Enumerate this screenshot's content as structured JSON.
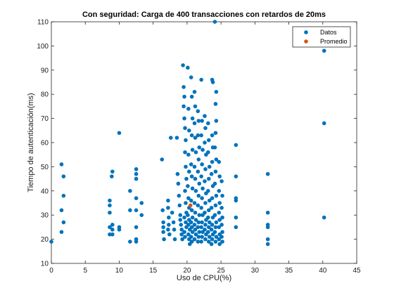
{
  "chart_data": {
    "type": "scatter",
    "title": "Con seguridad: Carga de 400 transacciones con retardos de 20ms",
    "xlabel": "Uso de CPU(%)",
    "ylabel": "Tiempo de autenticación(ms)",
    "xlim": [
      0,
      45
    ],
    "ylim": [
      10,
      110
    ],
    "xticks": [
      0,
      5,
      10,
      15,
      20,
      25,
      30,
      35,
      40,
      45
    ],
    "yticks": [
      10,
      20,
      30,
      40,
      50,
      60,
      70,
      80,
      90,
      100,
      110
    ],
    "grid": false,
    "legend_position": "top-right",
    "series": [
      {
        "name": "Datos",
        "color": "#0072BD",
        "points": [
          [
            0,
            19
          ],
          [
            1.5,
            51
          ],
          [
            1.5,
            32
          ],
          [
            1.5,
            23
          ],
          [
            1.8,
            46
          ],
          [
            1.8,
            38
          ],
          [
            1.8,
            27
          ],
          [
            8.6,
            36
          ],
          [
            8.6,
            34
          ],
          [
            8.6,
            31
          ],
          [
            8.6,
            25
          ],
          [
            8.6,
            22
          ],
          [
            8.9,
            46
          ],
          [
            9,
            48
          ],
          [
            9,
            26
          ],
          [
            9,
            24
          ],
          [
            9,
            22
          ],
          [
            10,
            64
          ],
          [
            10,
            25
          ],
          [
            10,
            24
          ],
          [
            11.6,
            40
          ],
          [
            11.6,
            32
          ],
          [
            11.6,
            19
          ],
          [
            12.5,
            49
          ],
          [
            12.5,
            47
          ],
          [
            12.5,
            45
          ],
          [
            12.5,
            37
          ],
          [
            12.5,
            32
          ],
          [
            12.5,
            25
          ],
          [
            12.5,
            20
          ],
          [
            12.5,
            19
          ],
          [
            13.3,
            35
          ],
          [
            13.3,
            30
          ],
          [
            16.3,
            53
          ],
          [
            16.4,
            32
          ],
          [
            16.5,
            27
          ],
          [
            16.5,
            25
          ],
          [
            16.5,
            23
          ],
          [
            16.6,
            20
          ],
          [
            17.2,
            36
          ],
          [
            17.2,
            33
          ],
          [
            17.3,
            29
          ],
          [
            17.3,
            26
          ],
          [
            17.2,
            24
          ],
          [
            17.4,
            22
          ],
          [
            17.6,
            62
          ],
          [
            17.8,
            31
          ],
          [
            18,
            27
          ],
          [
            18.1,
            24
          ],
          [
            18.2,
            20
          ],
          [
            18.5,
            62
          ],
          [
            18.6,
            47
          ],
          [
            18.7,
            43
          ],
          [
            18.8,
            38
          ],
          [
            18.9,
            34
          ],
          [
            19,
            30
          ],
          [
            19,
            28
          ],
          [
            19.1,
            26
          ],
          [
            19.2,
            24
          ],
          [
            19.2,
            22
          ],
          [
            19.3,
            20
          ],
          [
            19.4,
            92
          ],
          [
            19.5,
            83
          ],
          [
            19.6,
            79
          ],
          [
            19.5,
            75
          ],
          [
            19.6,
            70
          ],
          [
            19.7,
            66
          ],
          [
            19.8,
            61
          ],
          [
            19.7,
            56
          ],
          [
            19.8,
            50
          ],
          [
            19.9,
            45
          ],
          [
            19.7,
            40
          ],
          [
            19.8,
            35
          ],
          [
            19.9,
            31
          ],
          [
            19.6,
            29
          ],
          [
            19.8,
            27
          ],
          [
            19.9,
            25
          ],
          [
            19.6,
            23
          ],
          [
            19.7,
            21
          ],
          [
            20.1,
            91
          ],
          [
            20.2,
            74
          ],
          [
            20.3,
            65
          ],
          [
            20.2,
            55
          ],
          [
            20.3,
            48
          ],
          [
            20.1,
            42
          ],
          [
            20.2,
            37
          ],
          [
            20.3,
            33
          ],
          [
            20.1,
            30
          ],
          [
            20.3,
            28
          ],
          [
            20.2,
            26
          ],
          [
            20.4,
            24
          ],
          [
            20.2,
            22
          ],
          [
            20.3,
            20
          ],
          [
            20.4,
            18
          ],
          [
            20.6,
            87
          ],
          [
            20.7,
            79
          ],
          [
            20.8,
            70
          ],
          [
            20.7,
            63
          ],
          [
            20.8,
            57
          ],
          [
            20.6,
            51
          ],
          [
            20.7,
            46
          ],
          [
            20.8,
            41
          ],
          [
            20.6,
            36
          ],
          [
            20.7,
            32
          ],
          [
            20.8,
            29
          ],
          [
            20.6,
            27
          ],
          [
            20.7,
            25
          ],
          [
            20.8,
            23
          ],
          [
            20.6,
            21
          ],
          [
            20.7,
            19
          ],
          [
            21.1,
            81
          ],
          [
            21.2,
            75
          ],
          [
            21.1,
            68
          ],
          [
            21.2,
            62
          ],
          [
            21.3,
            56
          ],
          [
            21.1,
            50
          ],
          [
            21.2,
            45
          ],
          [
            21.3,
            40
          ],
          [
            21.1,
            35
          ],
          [
            21.2,
            31
          ],
          [
            21.3,
            28
          ],
          [
            21.1,
            26
          ],
          [
            21.2,
            24
          ],
          [
            21.3,
            22
          ],
          [
            21.1,
            20
          ],
          [
            21.6,
            73
          ],
          [
            21.7,
            69
          ],
          [
            21.6,
            63
          ],
          [
            21.8,
            58
          ],
          [
            21.7,
            53
          ],
          [
            21.6,
            48
          ],
          [
            21.8,
            43
          ],
          [
            21.7,
            38
          ],
          [
            21.6,
            34
          ],
          [
            21.8,
            30
          ],
          [
            21.7,
            27
          ],
          [
            21.6,
            25
          ],
          [
            21.8,
            23
          ],
          [
            21.7,
            21
          ],
          [
            21.6,
            19
          ],
          [
            22.1,
            86
          ],
          [
            22.2,
            69
          ],
          [
            22.1,
            63
          ],
          [
            22.3,
            57
          ],
          [
            22.2,
            51
          ],
          [
            22.1,
            46
          ],
          [
            22.3,
            41
          ],
          [
            22.2,
            37
          ],
          [
            22.1,
            33
          ],
          [
            22.3,
            30
          ],
          [
            22.2,
            27
          ],
          [
            22.1,
            25
          ],
          [
            22.3,
            23
          ],
          [
            22.2,
            21
          ],
          [
            22.1,
            19
          ],
          [
            22.6,
            71
          ],
          [
            22.7,
            66
          ],
          [
            22.6,
            60
          ],
          [
            22.8,
            55
          ],
          [
            22.7,
            49
          ],
          [
            22.6,
            44
          ],
          [
            22.8,
            39
          ],
          [
            22.7,
            35
          ],
          [
            22.6,
            31
          ],
          [
            22.8,
            28
          ],
          [
            22.7,
            26
          ],
          [
            22.6,
            24
          ],
          [
            22.8,
            22
          ],
          [
            22.7,
            20
          ],
          [
            23.1,
            68
          ],
          [
            23.2,
            61
          ],
          [
            23.1,
            56
          ],
          [
            23.3,
            50
          ],
          [
            23.2,
            45
          ],
          [
            23.1,
            40
          ],
          [
            23.3,
            36
          ],
          [
            23.2,
            32
          ],
          [
            23.1,
            29
          ],
          [
            23.3,
            27
          ],
          [
            23.2,
            25
          ],
          [
            23.1,
            23
          ],
          [
            23.3,
            21
          ],
          [
            23.2,
            19
          ],
          [
            23.7,
            86
          ],
          [
            23.8,
            85
          ],
          [
            23.7,
            63
          ],
          [
            23.8,
            58
          ],
          [
            23.7,
            52
          ],
          [
            23.6,
            47
          ],
          [
            23.8,
            42
          ],
          [
            23.7,
            37
          ],
          [
            23.6,
            33
          ],
          [
            23.8,
            29
          ],
          [
            23.7,
            26
          ],
          [
            23.6,
            24
          ],
          [
            23.8,
            22
          ],
          [
            23.7,
            20
          ],
          [
            23.6,
            18
          ],
          [
            24.1,
            110
          ],
          [
            24.3,
            81
          ],
          [
            24.2,
            76
          ],
          [
            24.3,
            69
          ],
          [
            24.2,
            64
          ],
          [
            24.1,
            58
          ],
          [
            24.3,
            53
          ],
          [
            24.2,
            48
          ],
          [
            24.1,
            43
          ],
          [
            24.3,
            38
          ],
          [
            24.2,
            34
          ],
          [
            24.1,
            30
          ],
          [
            24.3,
            27
          ],
          [
            24.2,
            25
          ],
          [
            24.1,
            23
          ],
          [
            24.3,
            21
          ],
          [
            24.2,
            19
          ],
          [
            24.7,
            52
          ],
          [
            24.8,
            46
          ],
          [
            24.7,
            40
          ],
          [
            24.8,
            35
          ],
          [
            24.7,
            31
          ],
          [
            24.8,
            28
          ],
          [
            24.7,
            25
          ],
          [
            24.8,
            22
          ],
          [
            24.7,
            20
          ],
          [
            24.8,
            18
          ],
          [
            25.1,
            44
          ],
          [
            25.2,
            38
          ],
          [
            25.1,
            33
          ],
          [
            25.2,
            29
          ],
          [
            25.1,
            26
          ],
          [
            25.2,
            23
          ],
          [
            25.1,
            21
          ],
          [
            25.2,
            19
          ],
          [
            27.2,
            59
          ],
          [
            27.2,
            46
          ],
          [
            27.2,
            37
          ],
          [
            27.2,
            36
          ],
          [
            27.2,
            29
          ],
          [
            27.2,
            25
          ],
          [
            31.9,
            47
          ],
          [
            31.9,
            31
          ],
          [
            31.9,
            26
          ],
          [
            31.9,
            25
          ],
          [
            31.9,
            20
          ],
          [
            31.9,
            18
          ],
          [
            40.2,
            98
          ],
          [
            40.2,
            68
          ],
          [
            40.2,
            29
          ]
        ]
      },
      {
        "name": "Promedio",
        "color": "#D95319",
        "points": [
          [
            20.5,
            34
          ]
        ]
      }
    ]
  }
}
